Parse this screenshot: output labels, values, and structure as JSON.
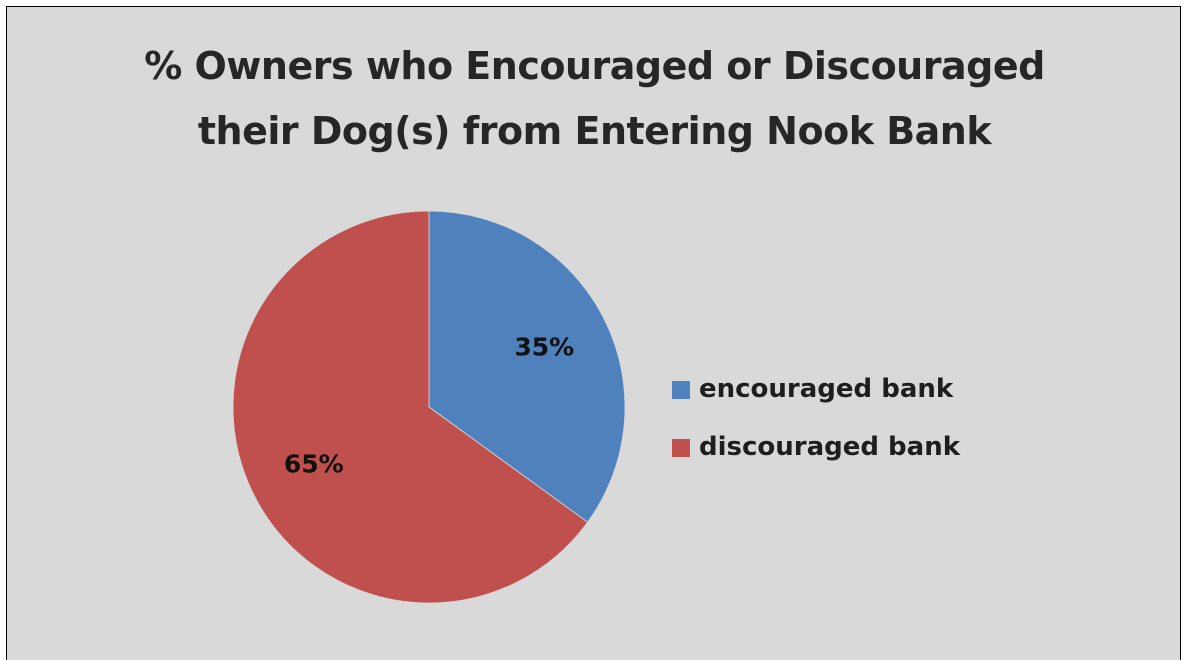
{
  "chart_data": {
    "type": "pie",
    "title": "% Owners who Encouraged or Discouraged their Dog(s) from Entering Nook Bank",
    "title_lines": [
      "% Owners who Encouraged or Discouraged",
      "their Dog(s) from Entering Nook Bank"
    ],
    "categories": [
      "encouraged bank",
      "discouraged bank"
    ],
    "values": [
      35,
      65
    ],
    "data_labels": [
      "35%",
      "65%"
    ],
    "colors": [
      "#4f81bd",
      "#c0504d"
    ],
    "start_angle_deg": 0,
    "direction": "clockwise",
    "legend_position": "right",
    "background_color": "#d9d9d9"
  }
}
